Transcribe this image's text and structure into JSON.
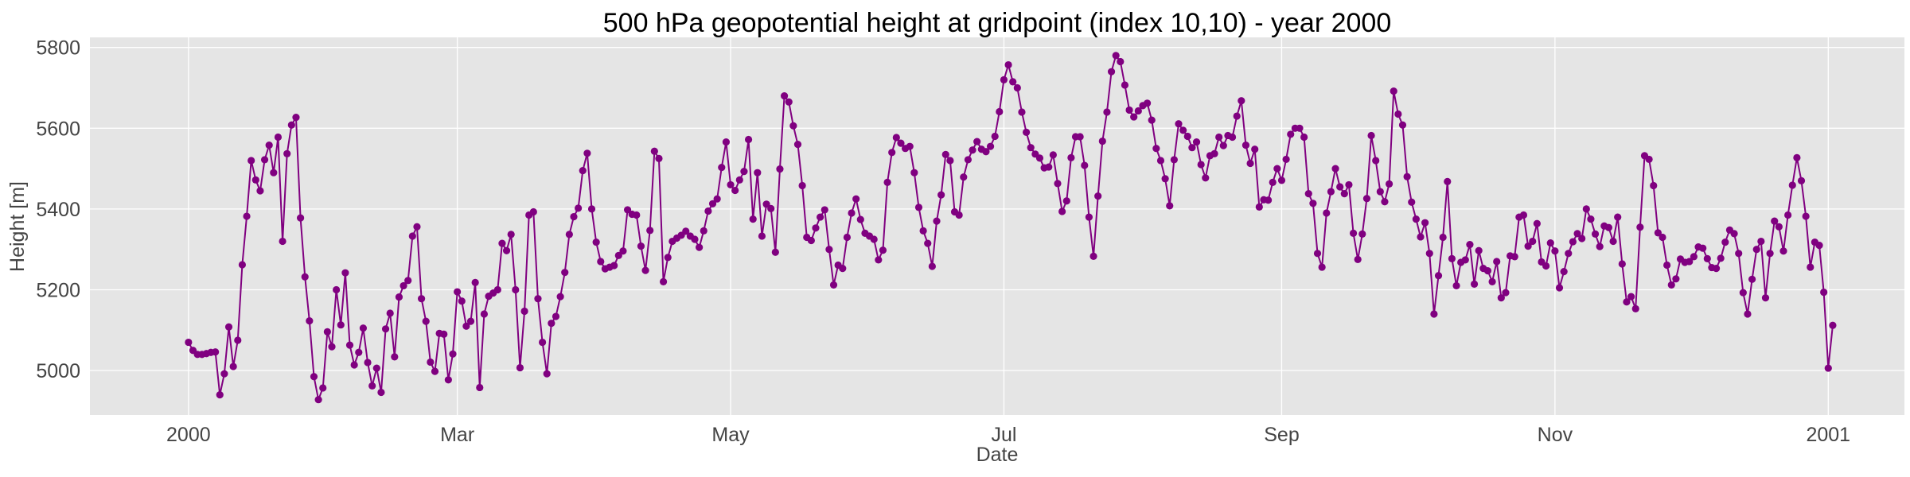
{
  "chart_data": {
    "type": "line",
    "title": "500 hPa geopotential height at gridpoint (index 10,10) - year 2000",
    "xlabel": "Date",
    "ylabel": "Height [m]",
    "grid": true,
    "legend": "none",
    "xlim": [
      "1999-12-10",
      "2001-01-18"
    ],
    "ylim": [
      4890,
      5825
    ],
    "y_ticks": [
      5000,
      5200,
      5400,
      5600,
      5800
    ],
    "x_ticks": [
      {
        "date": "2000-01-01",
        "label": "2000"
      },
      {
        "date": "2000-03-01",
        "label": "Mar"
      },
      {
        "date": "2000-05-01",
        "label": "May"
      },
      {
        "date": "2000-07-01",
        "label": "Jul"
      },
      {
        "date": "2000-09-01",
        "label": "Sep"
      },
      {
        "date": "2000-11-01",
        "label": "Nov"
      },
      {
        "date": "2001-01-01",
        "label": "2001"
      }
    ],
    "series": [
      {
        "color": "#800080",
        "x_start": "2000-01-01",
        "x_step": "1 day",
        "values": [
          5070,
          5050,
          5040,
          5040,
          5042,
          5045,
          5046,
          4940,
          4992,
          5108,
          5010,
          5075,
          5262,
          5382,
          5520,
          5472,
          5445,
          5522,
          5558,
          5490,
          5578,
          5320,
          5537,
          5608,
          5627,
          5378,
          5232,
          5123,
          4985,
          4928,
          4957,
          5096,
          5059,
          5200,
          5113,
          5242,
          5063,
          5014,
          5045,
          5105,
          5020,
          4962,
          5006,
          4946,
          5103,
          5142,
          5034,
          5182,
          5210,
          5223,
          5333,
          5356,
          5178,
          5122,
          5021,
          4998,
          5092,
          5090,
          4977,
          5041,
          5195,
          5172,
          5110,
          5122,
          5218,
          4958,
          5140,
          5184,
          5192,
          5200,
          5315,
          5297,
          5337,
          5200,
          5007,
          5147,
          5385,
          5393,
          5178,
          5070,
          4992,
          5117,
          5134,
          5183,
          5243,
          5337,
          5381,
          5402,
          5495,
          5538,
          5400,
          5318,
          5270,
          5252,
          5256,
          5260,
          5285,
          5296,
          5398,
          5387,
          5385,
          5308,
          5248,
          5347,
          5543,
          5525,
          5220,
          5280,
          5320,
          5328,
          5335,
          5345,
          5333,
          5325,
          5305,
          5346,
          5395,
          5413,
          5425,
          5503,
          5566,
          5460,
          5446,
          5472,
          5493,
          5572,
          5375,
          5490,
          5333,
          5412,
          5401,
          5293,
          5499,
          5680,
          5665,
          5606,
          5560,
          5458,
          5330,
          5322,
          5353,
          5380,
          5398,
          5300,
          5212,
          5261,
          5253,
          5330,
          5390,
          5425,
          5374,
          5340,
          5333,
          5325,
          5274,
          5298,
          5466,
          5540,
          5577,
          5563,
          5550,
          5555,
          5490,
          5404,
          5346,
          5315,
          5258,
          5370,
          5435,
          5535,
          5520,
          5393,
          5385,
          5479,
          5522,
          5546,
          5567,
          5548,
          5542,
          5555,
          5580,
          5641,
          5720,
          5757,
          5715,
          5700,
          5640,
          5590,
          5552,
          5536,
          5526,
          5502,
          5504,
          5534,
          5463,
          5394,
          5420,
          5527,
          5579,
          5579,
          5508,
          5380,
          5283,
          5432,
          5568,
          5640,
          5740,
          5780,
          5765,
          5707,
          5645,
          5628,
          5643,
          5656,
          5662,
          5620,
          5550,
          5520,
          5475,
          5408,
          5522,
          5611,
          5595,
          5580,
          5552,
          5566,
          5510,
          5477,
          5532,
          5537,
          5578,
          5557,
          5582,
          5578,
          5630,
          5668,
          5558,
          5513,
          5548,
          5405,
          5423,
          5422,
          5466,
          5500,
          5471,
          5523,
          5585,
          5600,
          5600,
          5578,
          5438,
          5414,
          5290,
          5256,
          5390,
          5443,
          5500,
          5455,
          5438,
          5460,
          5340,
          5275,
          5338,
          5426,
          5582,
          5520,
          5443,
          5418,
          5462,
          5692,
          5635,
          5608,
          5480,
          5417,
          5375,
          5331,
          5366,
          5290,
          5140,
          5235,
          5330,
          5468,
          5277,
          5210,
          5268,
          5274,
          5312,
          5214,
          5297,
          5253,
          5247,
          5220,
          5270,
          5180,
          5193,
          5284,
          5282,
          5380,
          5385,
          5308,
          5320,
          5364,
          5269,
          5259,
          5316,
          5296,
          5205,
          5245,
          5290,
          5319,
          5339,
          5327,
          5400,
          5375,
          5338,
          5307,
          5358,
          5354,
          5320,
          5380,
          5264,
          5170,
          5183,
          5153,
          5355,
          5532,
          5523,
          5458,
          5341,
          5330,
          5261,
          5212,
          5227,
          5276,
          5268,
          5270,
          5282,
          5306,
          5303,
          5277,
          5255,
          5253,
          5278,
          5318,
          5348,
          5339,
          5290,
          5193,
          5140,
          5226,
          5300,
          5320,
          5180,
          5290,
          5370,
          5356,
          5296,
          5385,
          5459,
          5527,
          5470,
          5382,
          5256,
          5318,
          5310,
          5194,
          5006,
          5112
        ]
      }
    ]
  }
}
